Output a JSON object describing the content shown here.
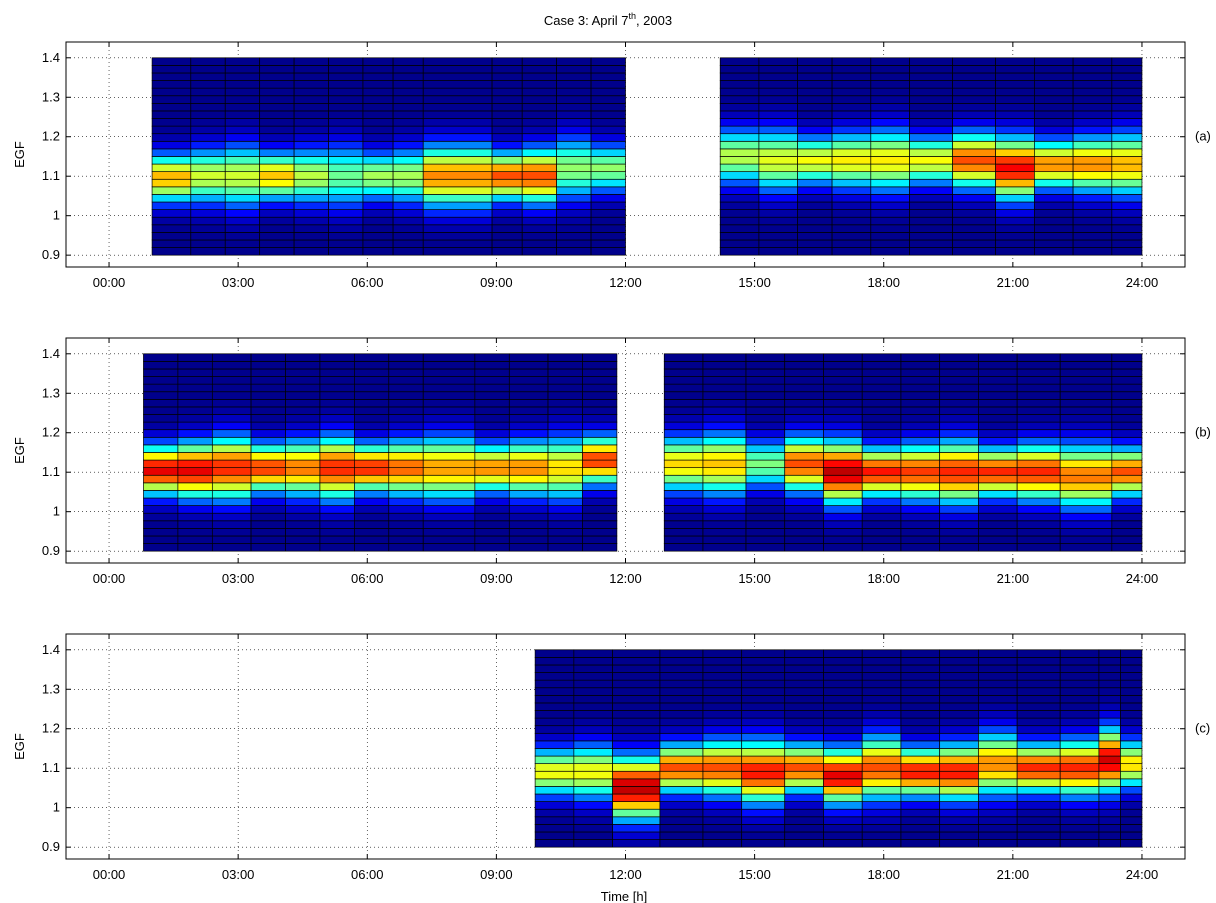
{
  "figure": {
    "title_main": "Case 3: April 7",
    "title_sup": "th",
    "title_tail": ", 2003",
    "xlabel": "Time [h]"
  },
  "chart_data": [
    {
      "type": "heatmap",
      "panel_label": "(a)",
      "ylabel": "EGF",
      "xlim": [
        -1,
        25
      ],
      "ylim": [
        0.87,
        1.44
      ],
      "xticks": [
        "00:00",
        "03:00",
        "06:00",
        "09:00",
        "12:00",
        "15:00",
        "18:00",
        "21:00",
        "24:00"
      ],
      "yticks": [
        "0.9",
        "1",
        "1.1",
        "1.2",
        "1.3",
        "1.4"
      ],
      "grid": true,
      "y_range": [
        0.9,
        1.4
      ],
      "time_bins": [
        {
          "start": 1.0,
          "end": 1.9,
          "peak": 0.7,
          "center": 1.095
        },
        {
          "start": 1.9,
          "end": 2.7,
          "peak": 0.58,
          "center": 1.1
        },
        {
          "start": 2.7,
          "end": 3.5,
          "peak": 0.58,
          "center": 1.1
        },
        {
          "start": 3.5,
          "end": 4.3,
          "peak": 0.68,
          "center": 1.1
        },
        {
          "start": 4.3,
          "end": 5.1,
          "peak": 0.56,
          "center": 1.1
        },
        {
          "start": 5.1,
          "end": 5.9,
          "peak": 0.48,
          "center": 1.1
        },
        {
          "start": 5.9,
          "end": 6.6,
          "peak": 0.54,
          "center": 1.1
        },
        {
          "start": 6.6,
          "end": 7.3,
          "peak": 0.54,
          "center": 1.1
        },
        {
          "start": 7.3,
          "end": 8.9,
          "peak": 0.74,
          "center": 1.1
        },
        {
          "start": 8.9,
          "end": 9.6,
          "peak": 0.8,
          "center": 1.1
        },
        {
          "start": 9.6,
          "end": 10.4,
          "peak": 0.8,
          "center": 1.1
        },
        {
          "start": 10.4,
          "end": 11.2,
          "peak": 0.52,
          "center": 1.12
        },
        {
          "start": 11.2,
          "end": 12.0,
          "peak": 0.52,
          "center": 1.12
        },
        {
          "start": 14.2,
          "end": 15.1,
          "peak": 0.56,
          "center": 1.15
        },
        {
          "start": 15.1,
          "end": 16.0,
          "peak": 0.6,
          "center": 1.14
        },
        {
          "start": 16.0,
          "end": 16.8,
          "peak": 0.62,
          "center": 1.14
        },
        {
          "start": 16.8,
          "end": 17.7,
          "peak": 0.64,
          "center": 1.14
        },
        {
          "start": 17.7,
          "end": 18.6,
          "peak": 0.64,
          "center": 1.14
        },
        {
          "start": 18.6,
          "end": 19.6,
          "peak": 0.62,
          "center": 1.14
        },
        {
          "start": 19.6,
          "end": 20.6,
          "peak": 0.8,
          "center": 1.14
        },
        {
          "start": 20.6,
          "end": 21.5,
          "peak": 0.88,
          "center": 1.12
        },
        {
          "start": 21.5,
          "end": 22.4,
          "peak": 0.74,
          "center": 1.13
        },
        {
          "start": 22.4,
          "end": 23.3,
          "peak": 0.74,
          "center": 1.13
        },
        {
          "start": 23.3,
          "end": 24.0,
          "peak": 0.7,
          "center": 1.13
        }
      ]
    },
    {
      "type": "heatmap",
      "panel_label": "(b)",
      "ylabel": "EGF",
      "xlim": [
        -1,
        25
      ],
      "ylim": [
        0.87,
        1.44
      ],
      "xticks": [
        "00:00",
        "03:00",
        "06:00",
        "09:00",
        "12:00",
        "15:00",
        "18:00",
        "21:00",
        "24:00"
      ],
      "yticks": [
        "0.9",
        "1",
        "1.1",
        "1.2",
        "1.3",
        "1.4"
      ],
      "grid": true,
      "y_range": [
        0.9,
        1.4
      ],
      "time_bins": [
        {
          "start": 0.8,
          "end": 1.6,
          "peak": 0.9,
          "center": 1.105
        },
        {
          "start": 1.6,
          "end": 2.4,
          "peak": 0.9,
          "center": 1.105
        },
        {
          "start": 2.4,
          "end": 3.3,
          "peak": 0.84,
          "center": 1.11
        },
        {
          "start": 3.3,
          "end": 4.1,
          "peak": 0.82,
          "center": 1.11
        },
        {
          "start": 4.1,
          "end": 4.9,
          "peak": 0.76,
          "center": 1.11
        },
        {
          "start": 4.9,
          "end": 5.7,
          "peak": 0.84,
          "center": 1.11
        },
        {
          "start": 5.7,
          "end": 6.5,
          "peak": 0.84,
          "center": 1.11
        },
        {
          "start": 6.5,
          "end": 7.3,
          "peak": 0.78,
          "center": 1.11
        },
        {
          "start": 7.3,
          "end": 8.5,
          "peak": 0.72,
          "center": 1.11
        },
        {
          "start": 8.5,
          "end": 9.3,
          "peak": 0.74,
          "center": 1.11
        },
        {
          "start": 9.3,
          "end": 10.2,
          "peak": 0.74,
          "center": 1.11
        },
        {
          "start": 10.2,
          "end": 11.0,
          "peak": 0.66,
          "center": 1.11
        },
        {
          "start": 11.0,
          "end": 11.8,
          "peak": 0.82,
          "center": 1.13
        },
        {
          "start": 12.9,
          "end": 13.8,
          "peak": 0.66,
          "center": 1.12
        },
        {
          "start": 13.8,
          "end": 14.8,
          "peak": 0.68,
          "center": 1.12
        },
        {
          "start": 14.8,
          "end": 15.7,
          "peak": 0.5,
          "center": 1.12
        },
        {
          "start": 15.7,
          "end": 16.6,
          "peak": 0.8,
          "center": 1.12
        },
        {
          "start": 16.6,
          "end": 17.5,
          "peak": 0.94,
          "center": 1.1
        },
        {
          "start": 17.5,
          "end": 18.4,
          "peak": 0.86,
          "center": 1.1
        },
        {
          "start": 18.4,
          "end": 19.3,
          "peak": 0.82,
          "center": 1.1
        },
        {
          "start": 19.3,
          "end": 20.2,
          "peak": 0.84,
          "center": 1.1
        },
        {
          "start": 20.2,
          "end": 21.1,
          "peak": 0.84,
          "center": 1.1
        },
        {
          "start": 21.1,
          "end": 22.1,
          "peak": 0.84,
          "center": 1.1
        },
        {
          "start": 22.1,
          "end": 23.3,
          "peak": 0.76,
          "center": 1.09
        },
        {
          "start": 23.3,
          "end": 24.0,
          "peak": 0.8,
          "center": 1.1
        }
      ]
    },
    {
      "type": "heatmap",
      "panel_label": "(c)",
      "ylabel": "EGF",
      "xlim": [
        -1,
        25
      ],
      "ylim": [
        0.87,
        1.44
      ],
      "xticks": [
        "00:00",
        "03:00",
        "06:00",
        "09:00",
        "12:00",
        "15:00",
        "18:00",
        "21:00",
        "24:00"
      ],
      "yticks": [
        "0.9",
        "1",
        "1.1",
        "1.2",
        "1.3",
        "1.4"
      ],
      "grid": true,
      "y_range": [
        0.9,
        1.4
      ],
      "time_bins": [
        {
          "start": 9.9,
          "end": 10.8,
          "peak": 0.62,
          "center": 1.09
        },
        {
          "start": 10.8,
          "end": 11.7,
          "peak": 0.62,
          "center": 1.09
        },
        {
          "start": 11.7,
          "end": 12.8,
          "peak": 0.94,
          "center": 1.05
        },
        {
          "start": 12.8,
          "end": 13.8,
          "peak": 0.8,
          "center": 1.1
        },
        {
          "start": 13.8,
          "end": 14.7,
          "peak": 0.8,
          "center": 1.1
        },
        {
          "start": 14.7,
          "end": 15.7,
          "peak": 0.86,
          "center": 1.09
        },
        {
          "start": 15.7,
          "end": 16.6,
          "peak": 0.8,
          "center": 1.1
        },
        {
          "start": 16.6,
          "end": 17.5,
          "peak": 0.9,
          "center": 1.08
        },
        {
          "start": 17.5,
          "end": 18.4,
          "peak": 0.8,
          "center": 1.1
        },
        {
          "start": 18.4,
          "end": 19.3,
          "peak": 0.86,
          "center": 1.09
        },
        {
          "start": 19.3,
          "end": 20.2,
          "peak": 0.86,
          "center": 1.09
        },
        {
          "start": 20.2,
          "end": 21.1,
          "peak": 0.74,
          "center": 1.11
        },
        {
          "start": 21.1,
          "end": 22.1,
          "peak": 0.84,
          "center": 1.1
        },
        {
          "start": 22.1,
          "end": 23.0,
          "peak": 0.84,
          "center": 1.1
        },
        {
          "start": 23.0,
          "end": 23.5,
          "peak": 0.92,
          "center": 1.12
        },
        {
          "start": 23.5,
          "end": 24.0,
          "peak": 0.66,
          "center": 1.11
        }
      ]
    }
  ]
}
